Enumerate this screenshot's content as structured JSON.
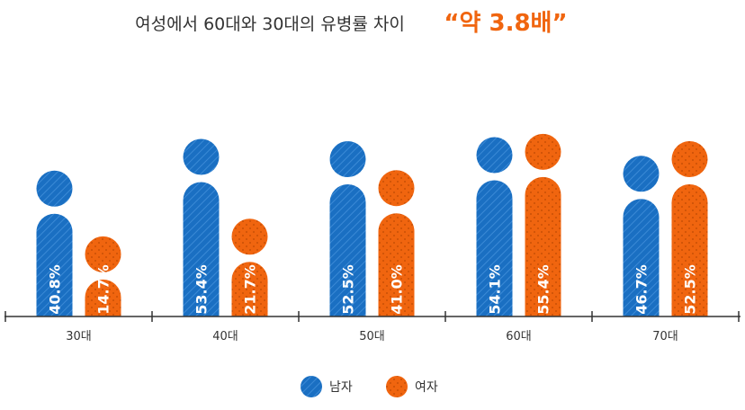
{
  "title": {
    "main": "여성에서 60대와 30대의 유병률 차이",
    "accent": "“약 3.8배”"
  },
  "colors": {
    "male": "#1a6fc2",
    "female": "#f0650f",
    "accent": "#f0650f",
    "axis": "#333333"
  },
  "chart_data": {
    "type": "bar",
    "categories": [
      "30대",
      "40대",
      "50대",
      "60대",
      "70대"
    ],
    "series": [
      {
        "name": "남자",
        "values": [
          40.8,
          53.4,
          52.5,
          54.1,
          46.7
        ],
        "labels": [
          "40.8%",
          "53.4%",
          "52.5%",
          "54.1%",
          "46.7%"
        ]
      },
      {
        "name": "여자",
        "values": [
          14.7,
          21.7,
          41.0,
          55.4,
          52.5
        ],
        "labels": [
          "14.7%",
          "21.7%",
          "41.0%",
          "55.4%",
          "52.5%"
        ]
      }
    ],
    "ylim": [
      0,
      100
    ],
    "grid": false,
    "legend": "bottom-center",
    "bar_style": "pictogram-person"
  }
}
